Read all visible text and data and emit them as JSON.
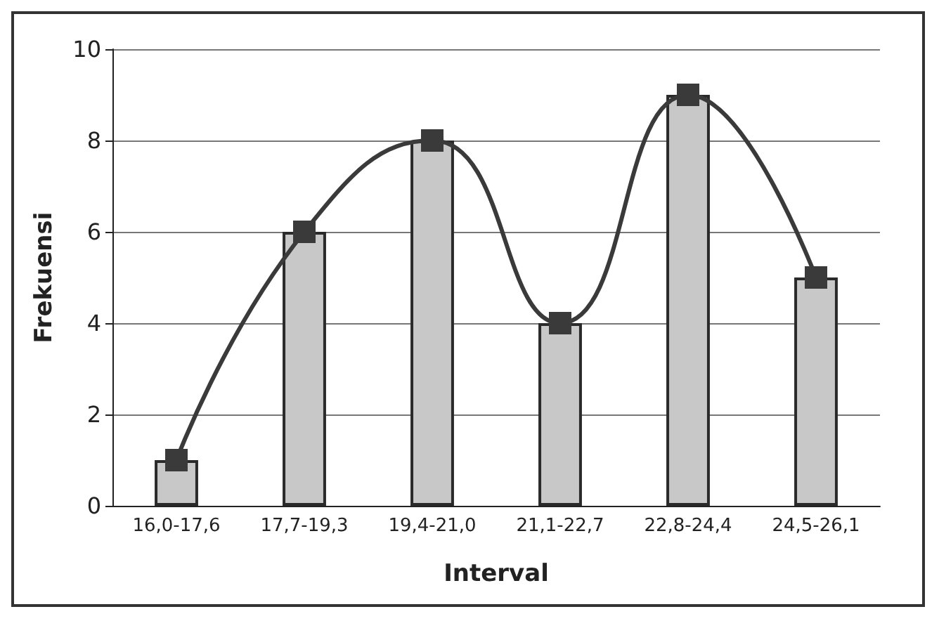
{
  "chart_data": {
    "type": "bar",
    "xlabel": "Interval",
    "ylabel": "Frekuensi",
    "categories": [
      "16,0-17,6",
      "17,7-19,3",
      "19,4-21,0",
      "21,1-22,7",
      "22,8-24,4",
      "24,5-26,1"
    ],
    "series": [
      {
        "color": "#c8c8c8",
        "values": [
          1,
          6,
          8,
          4,
          9,
          5
        ]
      },
      {
        "type": "line",
        "color": "#3a3a3a",
        "marker": "square",
        "values": [
          1,
          6,
          8,
          4,
          9,
          5
        ]
      }
    ],
    "ylim": [
      0,
      10
    ],
    "yticks": [
      0,
      2,
      4,
      6,
      8,
      10
    ],
    "grid": "y"
  }
}
